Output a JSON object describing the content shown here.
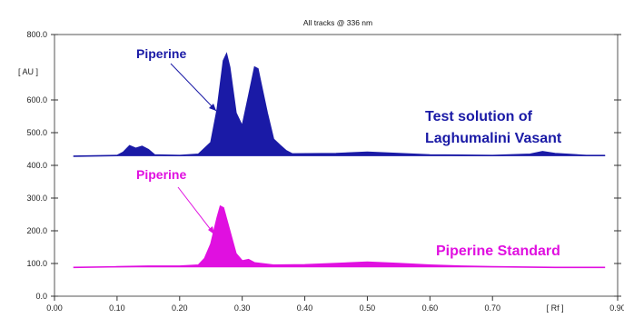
{
  "chart_data": {
    "type": "line",
    "title": "All tracks @ 336 nm",
    "ylabel": "[ AU ]",
    "xlabel": "[ Rf ]",
    "xlim": [
      0.0,
      0.9
    ],
    "ylim": [
      0.0,
      800.0
    ],
    "xticks": [
      "0.00",
      "0.10",
      "0.20",
      "0.30",
      "0.40",
      "0.50",
      "0.60",
      "0.70",
      "0.90"
    ],
    "yticks": [
      "0.0",
      "100.0",
      "200.0",
      "300.0",
      "400.0",
      "500.0",
      "600.0",
      "800.0"
    ],
    "series": [
      {
        "name": "Test solution of Laghumalini Vasant",
        "color": "#1a1aa6",
        "points": [
          [
            0.03,
            428
          ],
          [
            0.1,
            430
          ],
          [
            0.11,
            440
          ],
          [
            0.12,
            460
          ],
          [
            0.13,
            452
          ],
          [
            0.14,
            458
          ],
          [
            0.15,
            448
          ],
          [
            0.16,
            432
          ],
          [
            0.2,
            430
          ],
          [
            0.23,
            434
          ],
          [
            0.25,
            470
          ],
          [
            0.26,
            570
          ],
          [
            0.27,
            720
          ],
          [
            0.275,
            740
          ],
          [
            0.28,
            700
          ],
          [
            0.29,
            560
          ],
          [
            0.3,
            520
          ],
          [
            0.31,
            610
          ],
          [
            0.32,
            700
          ],
          [
            0.325,
            695
          ],
          [
            0.33,
            650
          ],
          [
            0.34,
            560
          ],
          [
            0.35,
            480
          ],
          [
            0.36,
            462
          ],
          [
            0.37,
            445
          ],
          [
            0.38,
            435
          ],
          [
            0.45,
            436
          ],
          [
            0.5,
            440
          ],
          [
            0.55,
            436
          ],
          [
            0.6,
            432
          ],
          [
            0.65,
            431
          ],
          [
            0.7,
            430
          ],
          [
            0.76,
            434
          ],
          [
            0.78,
            442
          ],
          [
            0.8,
            436
          ],
          [
            0.85,
            430
          ],
          [
            0.88,
            430
          ]
        ],
        "label": "Test solution of Laghumalini Vasant"
      },
      {
        "name": "Piperine Standard",
        "color": "#e010e0",
        "points": [
          [
            0.03,
            88
          ],
          [
            0.1,
            90
          ],
          [
            0.15,
            92
          ],
          [
            0.2,
            92
          ],
          [
            0.23,
            95
          ],
          [
            0.24,
            115
          ],
          [
            0.25,
            160
          ],
          [
            0.26,
            240
          ],
          [
            0.265,
            275
          ],
          [
            0.27,
            270
          ],
          [
            0.28,
            200
          ],
          [
            0.29,
            130
          ],
          [
            0.3,
            108
          ],
          [
            0.31,
            112
          ],
          [
            0.32,
            102
          ],
          [
            0.35,
            95
          ],
          [
            0.4,
            96
          ],
          [
            0.45,
            100
          ],
          [
            0.5,
            104
          ],
          [
            0.55,
            100
          ],
          [
            0.6,
            95
          ],
          [
            0.65,
            92
          ],
          [
            0.7,
            90
          ],
          [
            0.8,
            88
          ],
          [
            0.88,
            88
          ]
        ],
        "label": "Piperine Standard"
      }
    ],
    "annotations": [
      {
        "text": "Piperine",
        "color": "#1a1aa6"
      },
      {
        "text": "Piperine",
        "color": "#e010e0"
      }
    ]
  }
}
